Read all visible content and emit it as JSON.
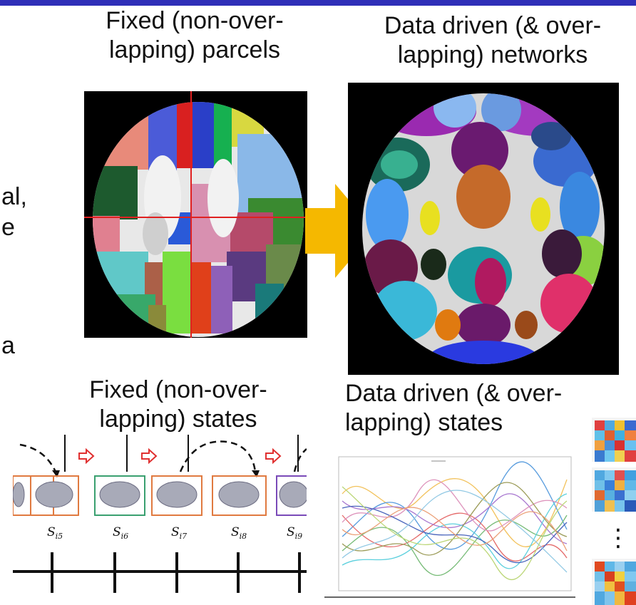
{
  "captions": {
    "parcels": {
      "line1": "Fixed (non-over-",
      "line2": "lapping) parcels"
    },
    "networks": {
      "line1": "Data driven (& over-",
      "line2": "lapping) networks"
    },
    "fixed_states": {
      "line1": "Fixed (non-over-",
      "line2": "lapping) states"
    },
    "data_states": {
      "line1": "Data driven (& over-",
      "line2": "lapping) states"
    }
  },
  "edge_fragments": {
    "frag1": "al,",
    "frag2": "e",
    "frag3": "a"
  },
  "state_labels": [
    "s_i5",
    "s_i6",
    "s_i7",
    "s_i8",
    "s_i9"
  ],
  "state_label_display": [
    {
      "main": "S",
      "sub": "i5"
    },
    {
      "main": "S",
      "sub": "i6"
    },
    {
      "main": "S",
      "sub": "i7"
    },
    {
      "main": "S",
      "sub": "i8"
    },
    {
      "main": "S",
      "sub": "i9"
    }
  ],
  "matrix_ellipsis": "⋮",
  "colors": {
    "arrow": "#f5b800",
    "topbar": "#2f2fb8",
    "crosshair": "#e02020",
    "state_box_orange": "#e07a40",
    "state_box_green": "#3aa070",
    "state_box_purple": "#7a4ab8",
    "transition_arrow": "#e03030"
  }
}
